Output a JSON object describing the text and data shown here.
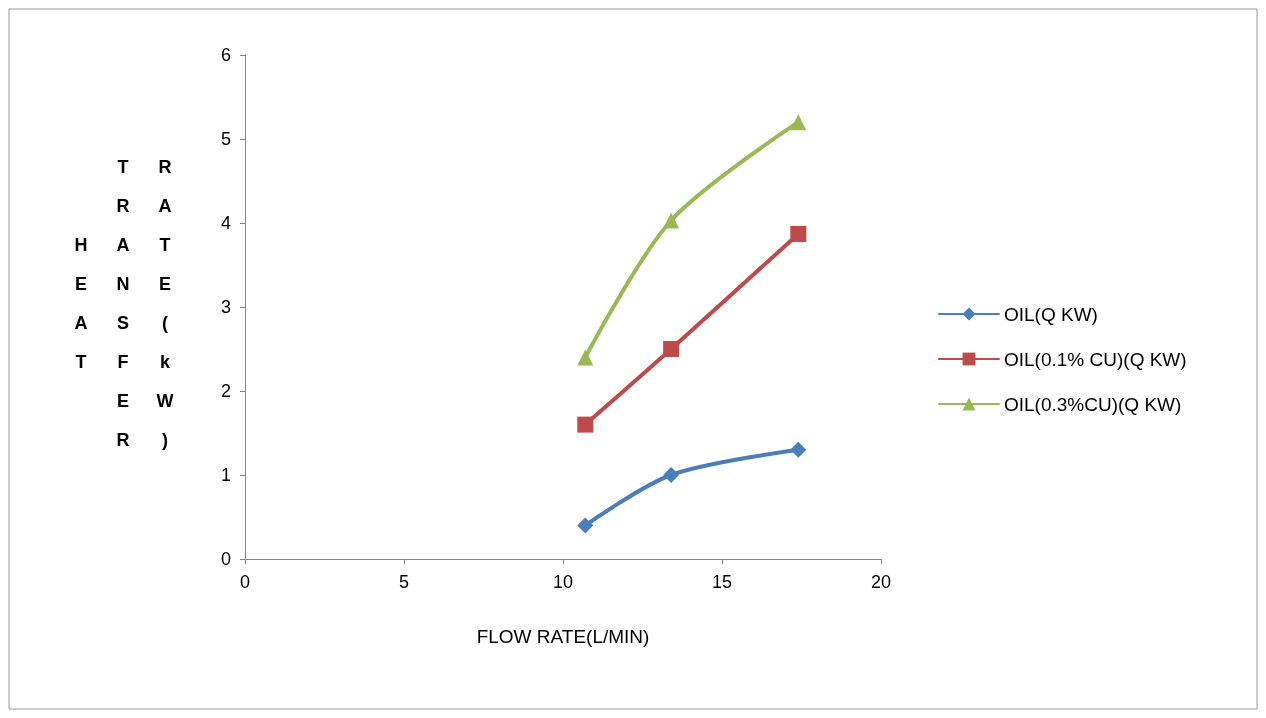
{
  "chart_data": {
    "type": "line",
    "xlabel": "FLOW RATE(L/MIN)",
    "ylabel": "HEAT TRANSFER RATE(kW)",
    "xlim": [
      0,
      20
    ],
    "xticks": [
      0,
      5,
      10,
      15,
      20
    ],
    "ylim": [
      0,
      6
    ],
    "yticks": [
      0,
      1,
      2,
      3,
      4,
      5,
      6
    ],
    "grid": false,
    "legend": "right",
    "series": [
      {
        "name": "OIL(Q KW)",
        "color": "#4a7ebb",
        "marker": "diamond",
        "x": [
          10.7,
          13.4,
          17.4
        ],
        "values": [
          0.4,
          1.0,
          1.3
        ]
      },
      {
        "name": "OIL(0.1% CU)(Q KW)",
        "color": "#be4b48",
        "marker": "square",
        "x": [
          10.7,
          13.4,
          17.4
        ],
        "values": [
          1.6,
          2.5,
          3.87
        ]
      },
      {
        "name": "OIL(0.3%CU)(Q KW)",
        "color": "#98b954",
        "marker": "triangle",
        "x": [
          10.7,
          13.4,
          17.4
        ],
        "values": [
          2.4,
          4.03,
          5.2
        ]
      }
    ]
  }
}
